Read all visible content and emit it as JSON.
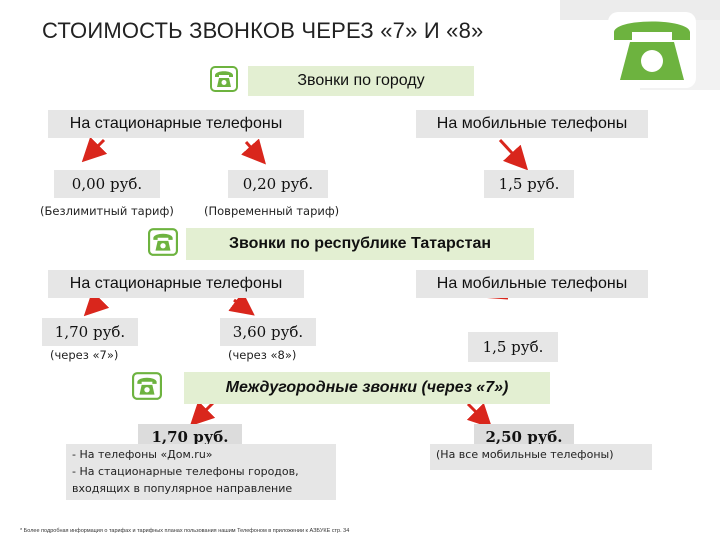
{
  "header": {
    "title": "СТОИМОСТЬ ЗВОНКОВ ЧЕРЕЗ «7» И «8»"
  },
  "colors": {
    "accent_green": "#6db33f",
    "arrow_red": "#d9261c",
    "section_bg": "#e3efd2",
    "box_bg": "#e6e6e6"
  },
  "sections": {
    "city": {
      "heading": "Звонки по городу",
      "landline_label": "На стационарные телефоны",
      "mobile_label": "На мобильные телефоны",
      "unlimited_price": "0,00 руб.",
      "unlimited_note": "(Безлимитный тариф)",
      "timebased_price": "0,20 руб.",
      "timebased_note": "(Повременный тариф)",
      "mobile_price": "1,5 руб."
    },
    "republic": {
      "heading": "Звонки по республике Татарстан",
      "landline_label": "На стационарные телефоны",
      "mobile_label": "На мобильные телефоны",
      "via7_price": "1,70 руб.",
      "via7_note": "(через «7»)",
      "via8_price": "3,60 руб.",
      "via8_note": "(через «8»)",
      "mobile_price": "1,5 руб."
    },
    "longdistance": {
      "heading": "Междугородные звонки (через «7»)",
      "price_left": "1,70 руб.",
      "note_left_1": "- На телефоны «Дом.ru»",
      "note_left_2": "- На стационарные телефоны городов,",
      "note_left_3": "входящих в популярное направление",
      "price_right": "2,50 руб.",
      "note_right": "(На все мобильные телефоны)"
    }
  },
  "footnote": "* Более подробная информация о тарифах и тарифных планах пользования нашим Телефоном в приложении к АЗБУКЕ стр. 34",
  "icons": [
    "phone-icon-large",
    "phone-icon-city",
    "phone-icon-republic",
    "phone-icon-longdistance"
  ]
}
